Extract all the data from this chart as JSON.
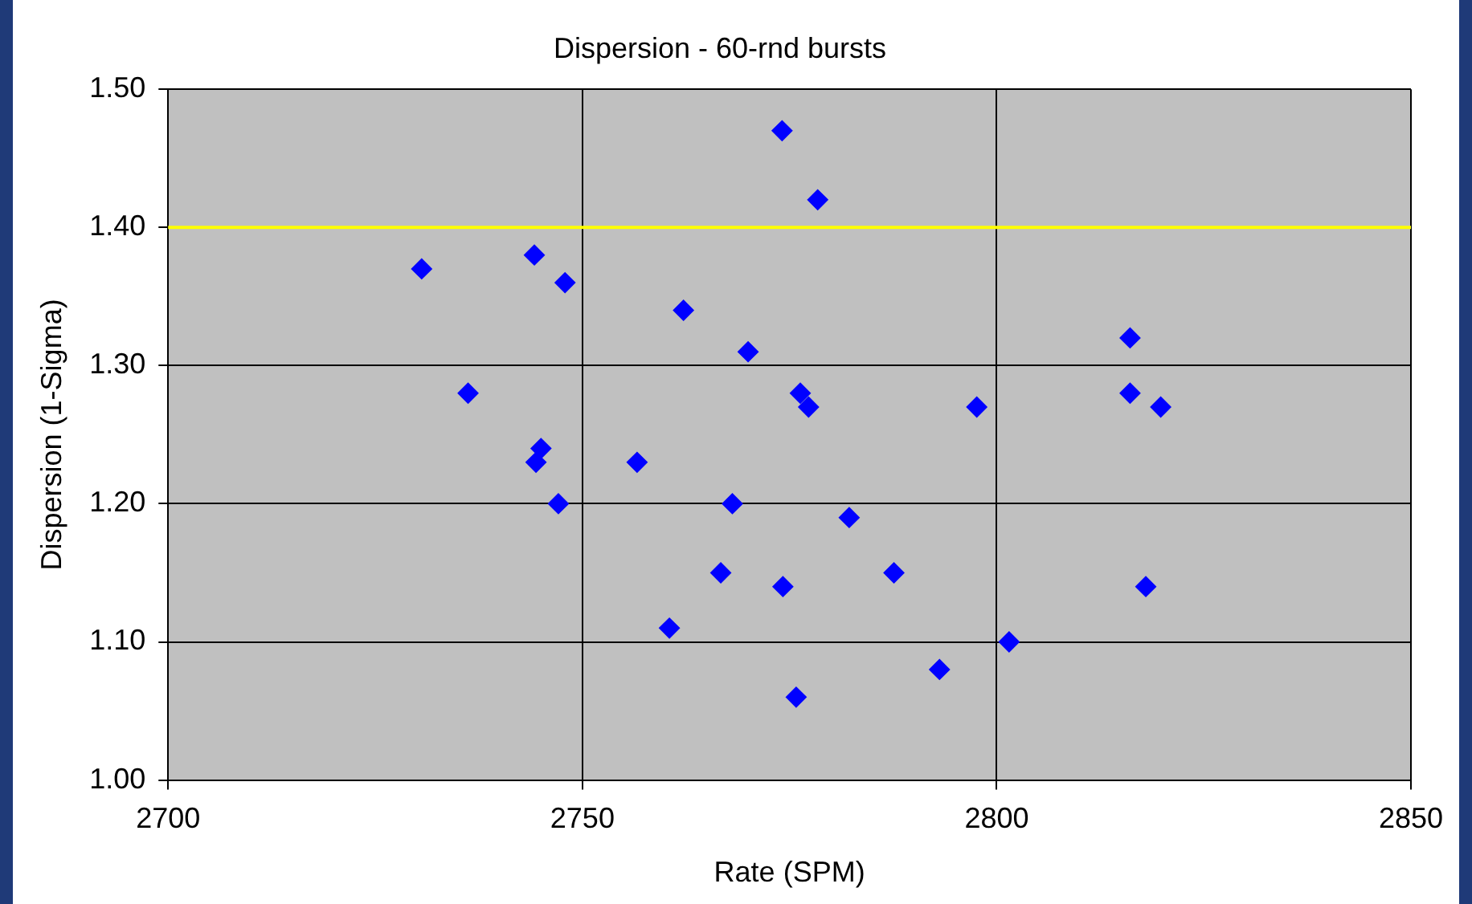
{
  "chart_data": {
    "type": "scatter",
    "title": "Dispersion - 60-rnd bursts",
    "xlabel": "Rate (SPM)",
    "ylabel": "Dispersion (1-Sigma)",
    "x": [
      2730.6,
      2736.2,
      2744.2,
      2747.9,
      2745.0,
      2744.4,
      2747.1,
      2756.6,
      2760.5,
      2762.2,
      2766.7,
      2768.1,
      2770.0,
      2774.1,
      2778.4,
      2774.2,
      2775.8,
      2776.3,
      2777.3,
      2782.2,
      2787.6,
      2793.1,
      2797.6,
      2801.5,
      2816.1,
      2816.1,
      2819.8,
      2818.0
    ],
    "series": [
      {
        "color": "#0000ff",
        "values": [
          1.37,
          1.28,
          1.38,
          1.36,
          1.24,
          1.23,
          1.2,
          1.23,
          1.11,
          1.34,
          1.15,
          1.2,
          1.31,
          1.47,
          1.42,
          1.14,
          1.06,
          1.28,
          1.27,
          1.19,
          1.15,
          1.08,
          1.27,
          1.1,
          1.32,
          1.28,
          1.27,
          1.14
        ]
      }
    ],
    "xlim": [
      2700,
      2850
    ],
    "xticks": [
      2700,
      2750,
      2800,
      2850
    ],
    "ylim": [
      1,
      1.5
    ],
    "yticks": [
      {
        "value": 1,
        "label": "1.00"
      },
      {
        "value": 1.1,
        "label": "1.10"
      },
      {
        "value": 1.2,
        "label": "1.20"
      },
      {
        "value": 1.3,
        "label": "1.30"
      },
      {
        "value": 1.4,
        "label": "1.40"
      },
      {
        "value": 1.5,
        "label": "1.50"
      }
    ],
    "ref_lines": [
      {
        "axis": "y",
        "value": 1.4,
        "color": "#ffff00"
      }
    ],
    "grid": true,
    "legend": false,
    "marker": "diamond"
  }
}
